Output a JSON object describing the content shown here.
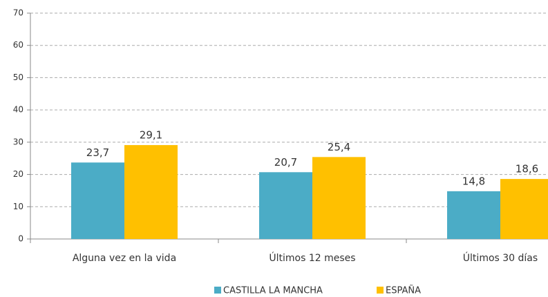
{
  "chart_data": {
    "type": "bar",
    "categories": [
      "Alguna vez en la vida",
      "Últimos 12 meses",
      "Últimos 30 días"
    ],
    "series": [
      {
        "name": "CASTILLA LA MANCHA",
        "color": "#4bacc6",
        "values": [
          23.7,
          20.7,
          14.8
        ],
        "value_labels": [
          "23,7",
          "20,7",
          "14,8"
        ]
      },
      {
        "name": "ESPAÑA",
        "color": "#ffc000",
        "values": [
          29.1,
          25.4,
          18.6
        ],
        "value_labels": [
          "29,1",
          "25,4",
          "18,6"
        ]
      }
    ],
    "ylim": [
      0,
      70
    ],
    "yticks": [
      0,
      10,
      20,
      30,
      40,
      50,
      60,
      70
    ],
    "grid": true,
    "legend": "bottom"
  }
}
